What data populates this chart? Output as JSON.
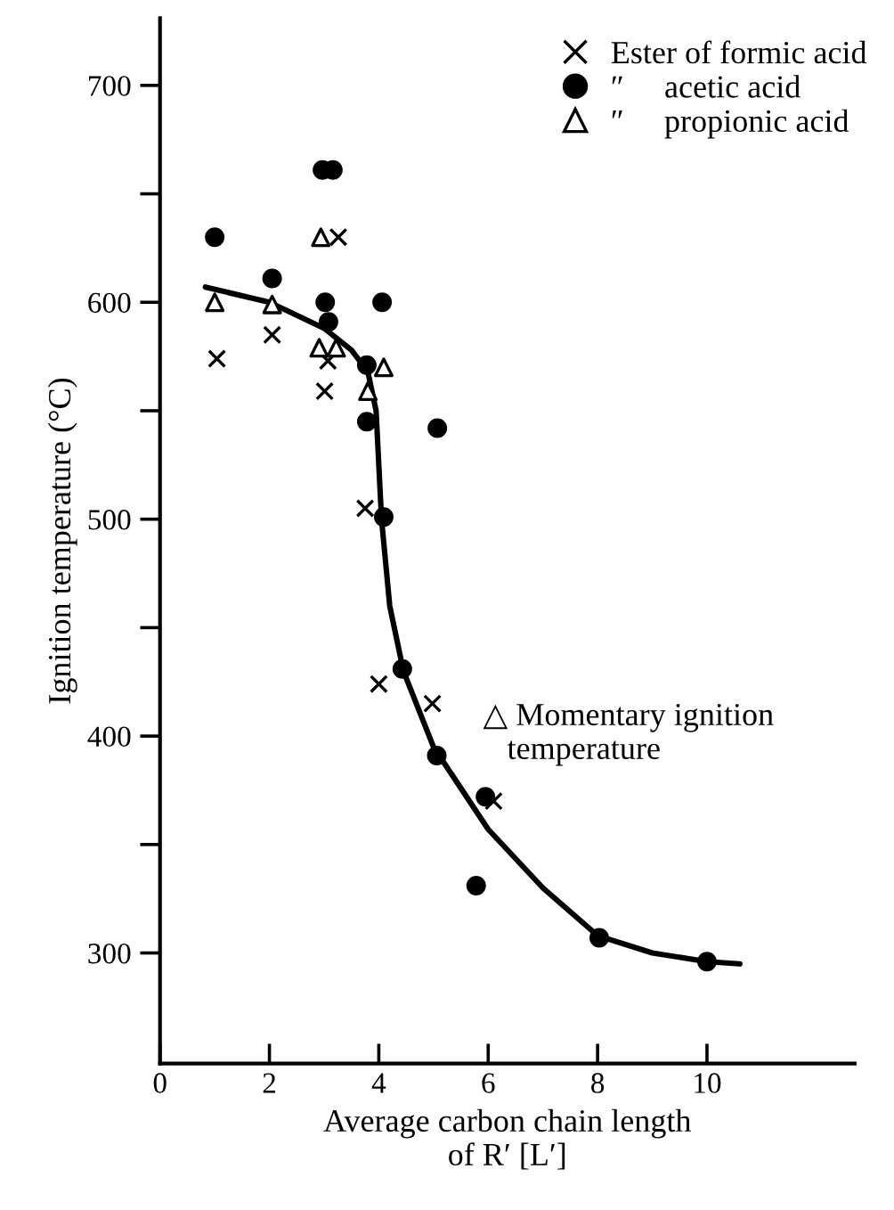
{
  "chart_data": {
    "type": "scatter",
    "xlabel": "Average carbon chain length\nof R′ [L′]",
    "ylabel": "Ignition temperature (°C)",
    "xlim": [
      0,
      12.7
    ],
    "ylim": [
      249,
      731
    ],
    "xticks": [
      0,
      2,
      4,
      6,
      8,
      10
    ],
    "yticks": [
      300,
      {
        "value": 350,
        "label": null
      },
      400,
      {
        "value": 450,
        "label": null
      },
      500,
      {
        "value": 550,
        "label": null
      },
      600,
      {
        "value": 650,
        "label": null
      },
      700
    ],
    "grid": false,
    "legend": "top right",
    "series": [
      {
        "name": "Ester of formic acid",
        "marker": "cross",
        "color": "#000000",
        "x": [
          1.04,
          2.05,
          3.26,
          3.01,
          3.07,
          3.75,
          4.0,
          4.98,
          6.1
        ],
        "values": [
          574,
          585,
          630,
          559,
          573,
          505,
          424,
          415,
          370
        ]
      },
      {
        "name": "″     acetic acid",
        "marker": "circle",
        "color": "#000000",
        "x": [
          1.0,
          2.05,
          2.97,
          3.16,
          3.02,
          4.06,
          3.08,
          3.78,
          3.78,
          5.07,
          4.09,
          4.43,
          5.06,
          5.95,
          5.78,
          8.03,
          10.0
        ],
        "values": [
          630,
          611,
          661,
          661,
          600,
          600,
          591,
          571,
          545,
          542,
          501,
          431,
          391,
          372,
          331,
          307,
          296
        ]
      },
      {
        "name": "″     propionic acid",
        "marker": "triangle",
        "color": "#000000",
        "x": [
          1.0,
          2.05,
          2.94,
          2.91,
          3.22,
          4.09,
          3.8
        ],
        "values": [
          600,
          599,
          630,
          579,
          579,
          570,
          559
        ]
      },
      {
        "type": "line",
        "marker": "none",
        "line_style": "solid",
        "color": "#000000",
        "x": [
          0.83,
          2,
          3,
          3.5,
          3.8,
          3.95,
          4.05,
          4.2,
          4.45,
          5,
          6,
          7,
          8,
          9,
          10,
          10.6
        ],
        "values": [
          607,
          600,
          588,
          578,
          568,
          550,
          500,
          460,
          430,
          395,
          357,
          330,
          308,
          300,
          296,
          295
        ]
      }
    ],
    "annotations": [
      "△ Momentary ignition\n   temperature"
    ]
  }
}
